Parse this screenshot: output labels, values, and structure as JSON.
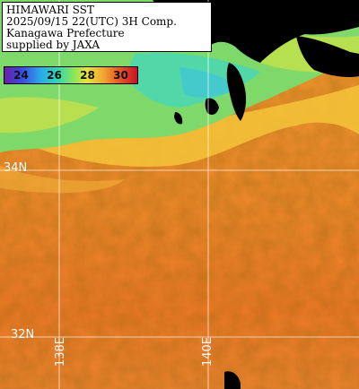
{
  "title": {
    "line1": "HIMAWARI SST",
    "line2": "2025/09/15 22(UTC) 3H Comp.",
    "line3": "Kanagawa Prefecture",
    "line4": "supplied by JAXA"
  },
  "colorbar": {
    "ticks": [
      "24",
      "26",
      "28",
      "30"
    ],
    "colors": [
      "#6a1fa8",
      "#3a4be0",
      "#2aa8e8",
      "#32d6b4",
      "#8ae45a",
      "#e8e23a",
      "#f0a830",
      "#ec5a22",
      "#c8102a"
    ]
  },
  "grid_labels": {
    "lat_upper": "34N",
    "lat_lower": "32N",
    "lon_left": "138E",
    "lon_right": "140E"
  },
  "colors": {
    "warm_sea": "#ee8a2c",
    "cool_sea": "#7bd86a",
    "land": "#000000",
    "grid": "#ffffff"
  }
}
